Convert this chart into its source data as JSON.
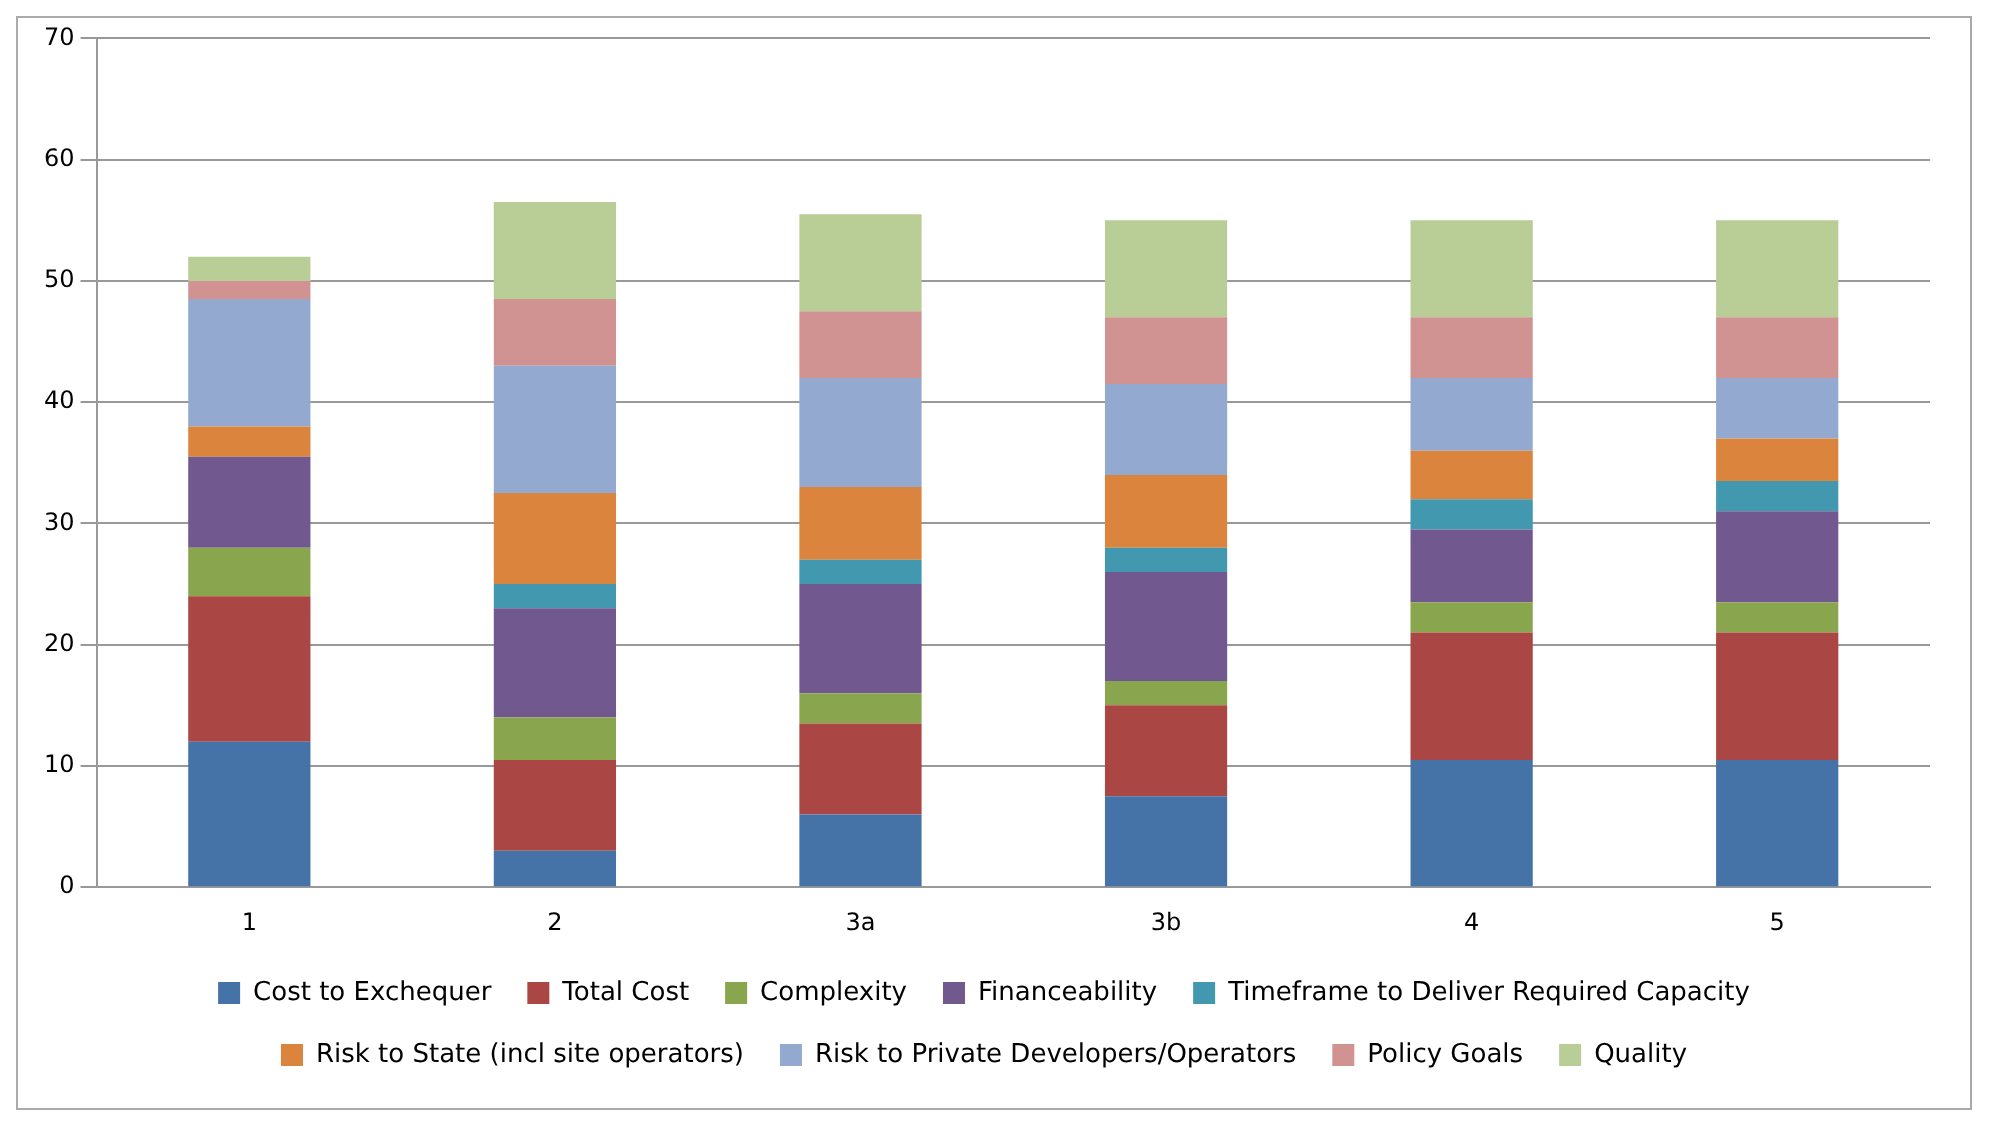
{
  "chart_data": {
    "type": "bar",
    "stacked": true,
    "categories": [
      "1",
      "2",
      "3a",
      "3b",
      "4",
      "5"
    ],
    "ylim": [
      0,
      70
    ],
    "yticks": [
      0,
      10,
      20,
      30,
      40,
      50,
      60,
      70
    ],
    "grid": "y",
    "legend": "bottom",
    "series": [
      {
        "name": "Cost to Exchequer",
        "color": "#4572a7",
        "values": [
          12,
          3,
          6,
          7.5,
          10.5,
          10.5
        ]
      },
      {
        "name": "Total Cost",
        "color": "#aa4643",
        "values": [
          12,
          7.5,
          7.5,
          7.5,
          10.5,
          10.5
        ]
      },
      {
        "name": "Complexity",
        "color": "#89a54e",
        "values": [
          4,
          3.5,
          2.5,
          2,
          2.5,
          2.5
        ]
      },
      {
        "name": "Financeability",
        "color": "#71588f",
        "values": [
          7.5,
          9,
          9,
          9,
          6,
          7.5
        ]
      },
      {
        "name": "Timeframe to Deliver Required Capacity",
        "color": "#4198af",
        "values": [
          0,
          2,
          2,
          2,
          2.5,
          2.5
        ]
      },
      {
        "name": "Risk to State (incl site operators)",
        "color": "#db843d",
        "values": [
          2.5,
          7.5,
          6,
          6,
          4,
          3.5
        ]
      },
      {
        "name": "Risk to Private Developers/Operators",
        "color": "#93a9cf",
        "values": [
          10.5,
          10.5,
          9,
          7.5,
          6,
          5
        ]
      },
      {
        "name": "Policy Goals",
        "color": "#d19392",
        "values": [
          1.5,
          5.5,
          5.5,
          5.5,
          5,
          5
        ]
      },
      {
        "name": "Quality",
        "color": "#b9cd96",
        "values": [
          2,
          8,
          8,
          8,
          8,
          8
        ]
      }
    ]
  }
}
